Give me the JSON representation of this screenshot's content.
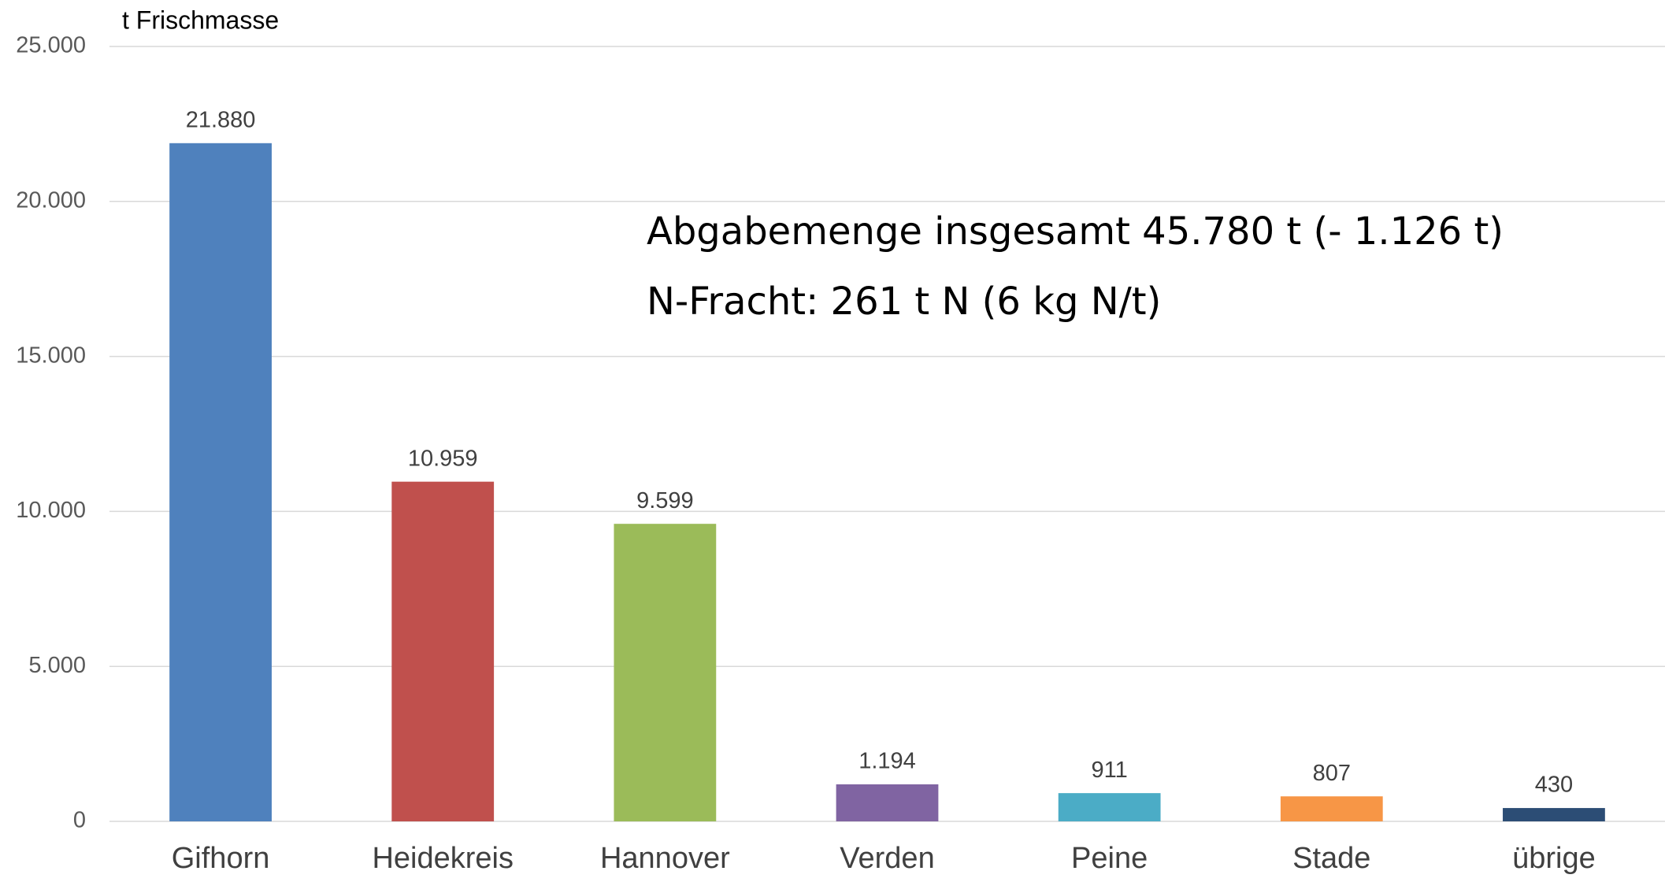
{
  "chart_data": {
    "type": "bar",
    "title": "t Frischmasse",
    "annotations": [
      "Abgabemenge insgesamt  45.780 t (- 1.126 t)",
      "N-Fracht: 261 t N (6 kg N/t)"
    ],
    "categories": [
      "Gifhorn",
      "Heidekreis",
      "Hannover",
      "Verden",
      "Peine",
      "Stade",
      "übrige"
    ],
    "values": [
      21880,
      10959,
      9599,
      1194,
      911,
      807,
      430
    ],
    "value_labels": [
      "21.880",
      "10.959",
      "9.599",
      "1.194",
      "911",
      "807",
      "430"
    ],
    "colors": [
      "#4f81bd",
      "#c0504d",
      "#9bbb59",
      "#8064a2",
      "#4bacc6",
      "#f79646",
      "#2c4d75"
    ],
    "ylim": [
      0,
      25000
    ],
    "yticks": [
      0,
      {
        "value": 5000,
        "label": "5.000"
      },
      {
        "value": 10000,
        "label": "10.000"
      },
      {
        "value": 15000,
        "label": "15.000"
      },
      {
        "value": 20000,
        "label": "20.000"
      },
      {
        "value": 25000,
        "label": "25.000"
      }
    ],
    "grid": true
  }
}
